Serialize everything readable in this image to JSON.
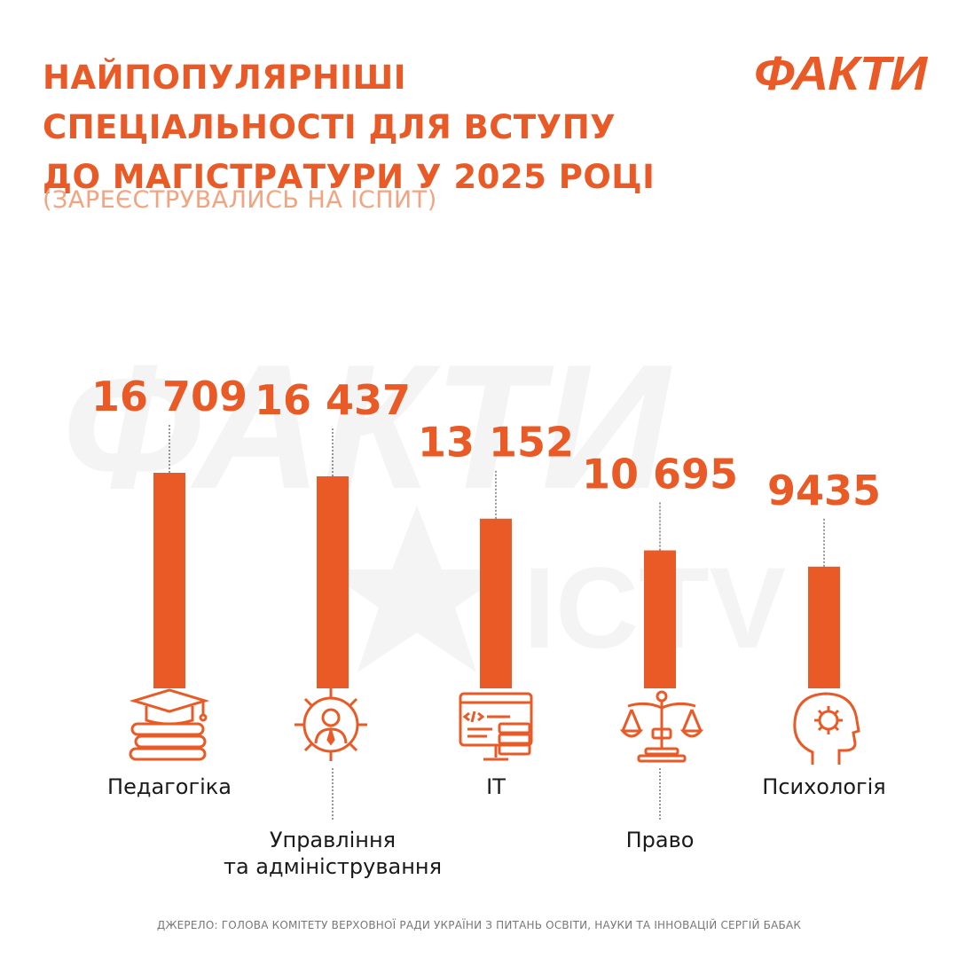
{
  "title_lines": [
    "НАЙПОПУЛЯРНІШІ",
    "СПЕЦІАЛЬНОСТІ ДЛЯ ВСТУПУ",
    "ДО МАГІСТРАТУРИ У 2025 РОЦІ"
  ],
  "subtitle": "(ЗАРЕЄСТРУВАЛИСЬ НА ІСПИТ)",
  "logo": "ФАКТИ",
  "watermark_text": "ФАКТИ",
  "watermark_sub": "ICTV",
  "source": "ДЖЕРЕЛО: ГОЛОВА КОМІТЕТУ ВЕРХОВНОЇ РАДИ УКРАЇНИ З ПИТАНЬ ОСВІТИ, НАУКИ ТА ІННОВАЦІЙ СЕРГІЙ БАБАК",
  "colors": {
    "accent": "#ea5a26",
    "subtitle": "#f4a37f",
    "watermark": "#f3f3f3"
  },
  "chart_data": {
    "type": "bar",
    "categories": [
      "Педагогіка",
      "Управління та адміністрування",
      "IT",
      "Право",
      "Психологія"
    ],
    "category_lines": [
      [
        "Педагогіка"
      ],
      [
        "Управління",
        "та адміністрування"
      ],
      [
        "IT"
      ],
      [
        "Право"
      ],
      [
        "Психологія"
      ]
    ],
    "values": [
      16709,
      16437,
      13152,
      10695,
      9435
    ],
    "value_labels": [
      "16 709",
      "16 437",
      "13 152",
      "10 695",
      "9435"
    ],
    "icons": [
      "books-graduation-cap-icon",
      "gear-person-icon",
      "code-window-server-icon",
      "scales-of-justice-icon",
      "head-gear-icon"
    ],
    "title": "НАЙПОПУЛЯРНІШІ СПЕЦІАЛЬНОСТІ ДЛЯ ВСТУПУ ДО МАГІСТРАТУРИ У 2025 РОЦІ",
    "subtitle": "(ЗАРЕЄСТРУВАЛИСЬ НА ІСПИТ)",
    "xlabel": "",
    "ylabel": "",
    "grid": false,
    "legend": "none"
  }
}
